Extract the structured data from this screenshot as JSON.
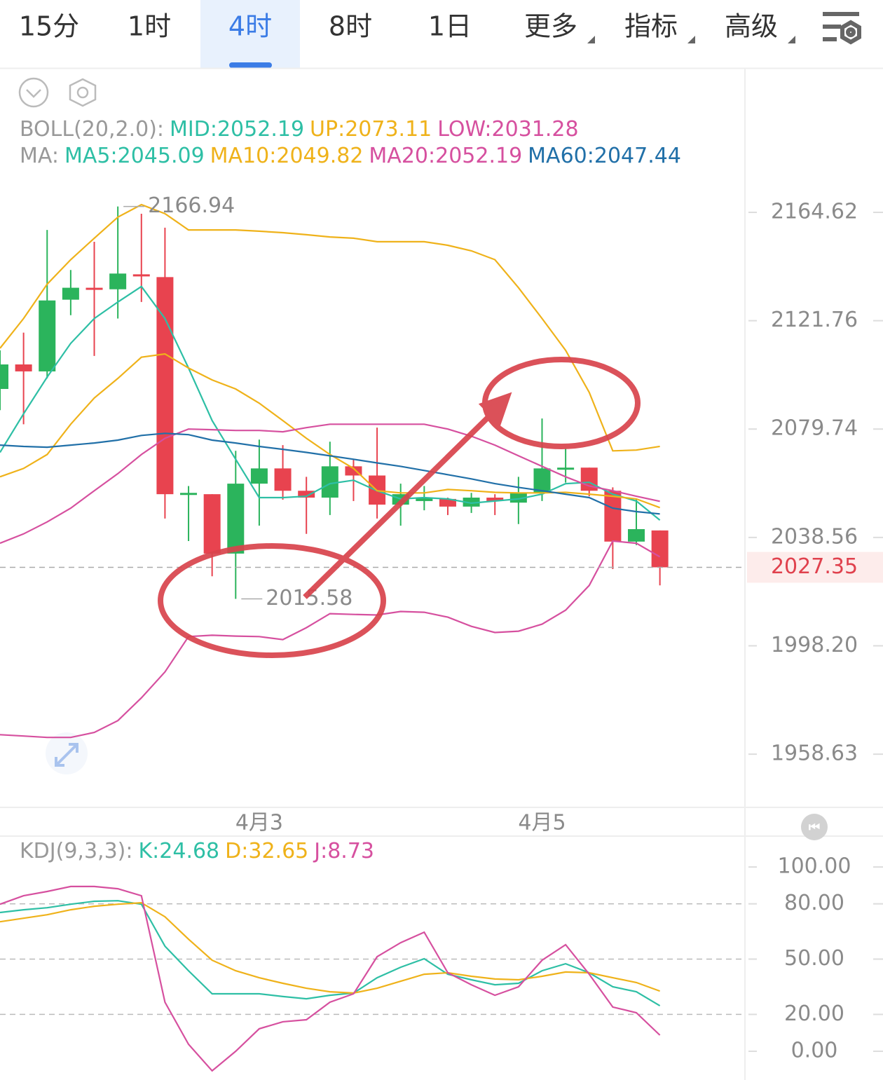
{
  "tabs": {
    "items": [
      "15分",
      "1时",
      "4时",
      "8时",
      "1日",
      "更多",
      "指标",
      "高级"
    ],
    "active": 2
  },
  "chart_data": [
    {
      "type": "candlestick",
      "log_scale": true,
      "indicator_legends": [
        {
          "prefix": "BOLL(20,2.0):",
          "items": [
            {
              "text": "MID:2052.19",
              "color": "#2ebfa5"
            },
            {
              "text": "UP:2073.11",
              "color": "#efb21a"
            },
            {
              "text": "LOW:2031.28",
              "color": "#d6509f"
            }
          ]
        },
        {
          "prefix": "MA:",
          "items": [
            {
              "text": "MA5:2045.09",
              "color": "#2ebfa5"
            },
            {
              "text": "MA10:2049.82",
              "color": "#efb21a"
            },
            {
              "text": "MA20:2052.19",
              "color": "#d6509f"
            },
            {
              "text": "MA60:2047.44",
              "color": "#2170a8"
            }
          ]
        }
      ],
      "categories": [
        null,
        null,
        null,
        null,
        null,
        null,
        null,
        null,
        null,
        null,
        null,
        "4月3",
        null,
        null,
        null,
        null,
        null,
        null,
        null,
        null,
        null,
        null,
        null,
        "4月5",
        null,
        null,
        null,
        null,
        null
      ],
      "open": [
        2095.2,
        2104.7,
        2102.0,
        2130.0,
        2134.7,
        2134.1,
        2140.0,
        2138.9,
        2054.9,
        2054.9,
        2032.5,
        2058.9,
        2064.7,
        2056.2,
        2053.6,
        2065.5,
        2062.0,
        2050.95,
        2052.3,
        2053.1,
        2050.2,
        2053.6,
        2051.7,
        2055.4,
        2064.4,
        2065.0,
        2056.2,
        2037.0,
        2041.2
      ],
      "high": [
        2110.2,
        2117.1,
        2157.6,
        2141.7,
        2152.9,
        2166.94,
        2164.06,
        2158.5,
        2058.0,
        2054.9,
        2071.4,
        2075.7,
        2073.6,
        2061.5,
        2074.9,
        2068.2,
        2080.3,
        2058.9,
        2058.0,
        2053.6,
        2055.4,
        2054.9,
        2061.5,
        2083.8,
        2072.2,
        2065.0,
        2057.5,
        2053.1,
        2041.2
      ],
      "low": [
        2087.0,
        2081.6,
        2099.3,
        2123.9,
        2108.0,
        2122.6,
        2129.1,
        2045.7,
        2037.2,
        2024.0,
        2015.58,
        2043.0,
        2052.8,
        2039.9,
        2047.0,
        2052.3,
        2045.7,
        2043.0,
        2048.8,
        2047.0,
        2047.8,
        2047.0,
        2043.6,
        2052.3,
        2059.3,
        2054.1,
        2026.7,
        2035.7,
        2020.6
      ],
      "close": [
        2104.7,
        2102.0,
        2129.7,
        2134.7,
        2134.1,
        2140.3,
        2139.2,
        2054.9,
        2055.4,
        2032.5,
        2058.9,
        2064.7,
        2056.2,
        2053.6,
        2065.5,
        2062.0,
        2050.95,
        2054.9,
        2053.6,
        2050.2,
        2053.6,
        2052.3,
        2055.4,
        2064.7,
        2065.0,
        2056.2,
        2037.0,
        2041.7,
        2027.35
      ],
      "up_color": "#2bb45c",
      "down_color": "#e8434f",
      "series": [
        {
          "color": "#efb21a",
          "values": [
            2111.0,
            2122.6,
            2136.1,
            2145.8,
            2154.3,
            2162.7,
            2167.7,
            2164.1,
            2157.6,
            2157.6,
            2157.6,
            2157.1,
            2156.5,
            2155.7,
            2154.8,
            2154.3,
            2152.9,
            2152.9,
            2152.9,
            2151.5,
            2149.3,
            2145.8,
            2134.7,
            2122.6,
            2110.2,
            2093.9,
            2071.4,
            2071.7,
            2073.11
          ]
        },
        {
          "color": "#2ebfa5",
          "values": [
            2070.8,
            2085.6,
            2099.8,
            2112.9,
            2122.6,
            2129.1,
            2135.2,
            2122.6,
            2103.3,
            2083.0,
            2068.2,
            2053.6,
            2053.6,
            2054.1,
            2058.9,
            2060.2,
            2056.2,
            2053.1,
            2053.6,
            2053.1,
            2051.5,
            2052.3,
            2053.1,
            2054.9,
            2058.9,
            2059.4,
            2054.9,
            2052.3,
            2045.09
          ]
        },
        {
          "color": "#efb21a",
          "values": [
            2061.5,
            2064.7,
            2070.0,
            2081.6,
            2091.7,
            2099.3,
            2107.5,
            2108.8,
            2103.3,
            2098.7,
            2095.2,
            2089.7,
            2083.0,
            2076.2,
            2070.0,
            2064.7,
            2056.2,
            2055.4,
            2055.4,
            2056.7,
            2056.2,
            2055.6,
            2055.4,
            2055.4,
            2055.6,
            2054.9,
            2054.1,
            2053.1,
            2049.82
          ]
        },
        {
          "color": "#d6509f",
          "values": [
            2036.4,
            2039.9,
            2044.4,
            2049.6,
            2056.2,
            2062.7,
            2070.0,
            2076.2,
            2079.74,
            2079.5,
            2079.2,
            2079.2,
            2078.7,
            2080.3,
            2081.6,
            2081.6,
            2081.6,
            2081.6,
            2081.6,
            2079.74,
            2077.0,
            2073.6,
            2069.5,
            2065.5,
            2061.5,
            2058.0,
            2056.2,
            2054.1,
            2052.19
          ]
        },
        {
          "color": "#2170a8",
          "values": [
            2073.6,
            2073.1,
            2072.8,
            2073.6,
            2074.4,
            2075.5,
            2077.3,
            2078.1,
            2077.6,
            2075.5,
            2074.4,
            2073.1,
            2072.0,
            2070.8,
            2069.5,
            2068.2,
            2066.8,
            2065.5,
            2063.9,
            2062.3,
            2060.7,
            2058.9,
            2057.5,
            2056.2,
            2054.9,
            2053.6,
            2049.6,
            2048.3,
            2047.44
          ]
        },
        {
          "color": "#d6509f",
          "values": [
            1965.7,
            1965.2,
            1964.7,
            1964.7,
            1966.5,
            1970.8,
            1979.1,
            1988.6,
            2001.6,
            2002.1,
            2001.8,
            2001.6,
            2000.5,
            2004.9,
            2010.1,
            2009.8,
            2009.6,
            2010.9,
            2010.6,
            2008.8,
            2005.4,
            2003.1,
            2003.6,
            2006.2,
            2011.4,
            2020.6,
            2037.2,
            2036.4,
            2031.28
          ]
        }
      ],
      "ylim": [
        1940,
        2179.5
      ],
      "yticks": [
        2164.62,
        2121.76,
        2079.74,
        2038.56,
        {
          "value": 1998.2,
          "label": "1998.20"
        },
        1958.63
      ]
    },
    {
      "type": "line",
      "indicator_legends": [
        {
          "prefix": "KDJ(9,3,3):",
          "items": [
            {
              "text": "K:24.68",
              "color": "#2ebfa5"
            },
            {
              "text": "D:32.65",
              "color": "#efb21a"
            },
            {
              "text": "J:8.73",
              "color": "#d6509f"
            }
          ]
        }
      ],
      "series": [
        {
          "color": "#2ebfa5",
          "values": [
            75.3,
            76.8,
            77.9,
            79.8,
            81.4,
            81.7,
            79.8,
            57.0,
            43.7,
            31.2,
            31.2,
            31.2,
            29.7,
            28.5,
            30.4,
            31.6,
            39.9,
            45.6,
            50.2,
            41.8,
            38.8,
            36.1,
            36.9,
            43.7,
            47.5,
            42.6,
            35.0,
            32.3,
            24.68
          ]
        },
        {
          "color": "#efb21a",
          "values": [
            70.3,
            72.2,
            74.1,
            76.8,
            78.7,
            79.8,
            80.6,
            73.0,
            60.8,
            49.4,
            43.7,
            39.9,
            36.9,
            34.2,
            32.3,
            31.6,
            34.2,
            38.0,
            41.8,
            42.6,
            40.7,
            39.2,
            38.8,
            40.7,
            43.0,
            42.6,
            39.9,
            37.3,
            32.65
          ]
        },
        {
          "color": "#d6509f",
          "values": [
            79.8,
            84.4,
            86.7,
            89.4,
            89.4,
            88.2,
            84.4,
            26.6,
            3.8,
            -10.6,
            0,
            12.2,
            16.0,
            17.1,
            26.6,
            31.2,
            51.3,
            58.9,
            64.6,
            42.6,
            36.1,
            30.4,
            35.0,
            49.4,
            57.8,
            41.8,
            24.0,
            20.9,
            8.73
          ]
        }
      ],
      "ylim": [
        -15.6,
        116
      ],
      "yticks": [
        {
          "value": 100,
          "label": "100.00"
        },
        {
          "value": 80,
          "label": "80.00"
        },
        {
          "value": 50,
          "label": "50.00"
        },
        {
          "value": 20,
          "label": "20.00"
        },
        {
          "value": 0,
          "label": "0.00"
        }
      ]
    }
  ]
}
